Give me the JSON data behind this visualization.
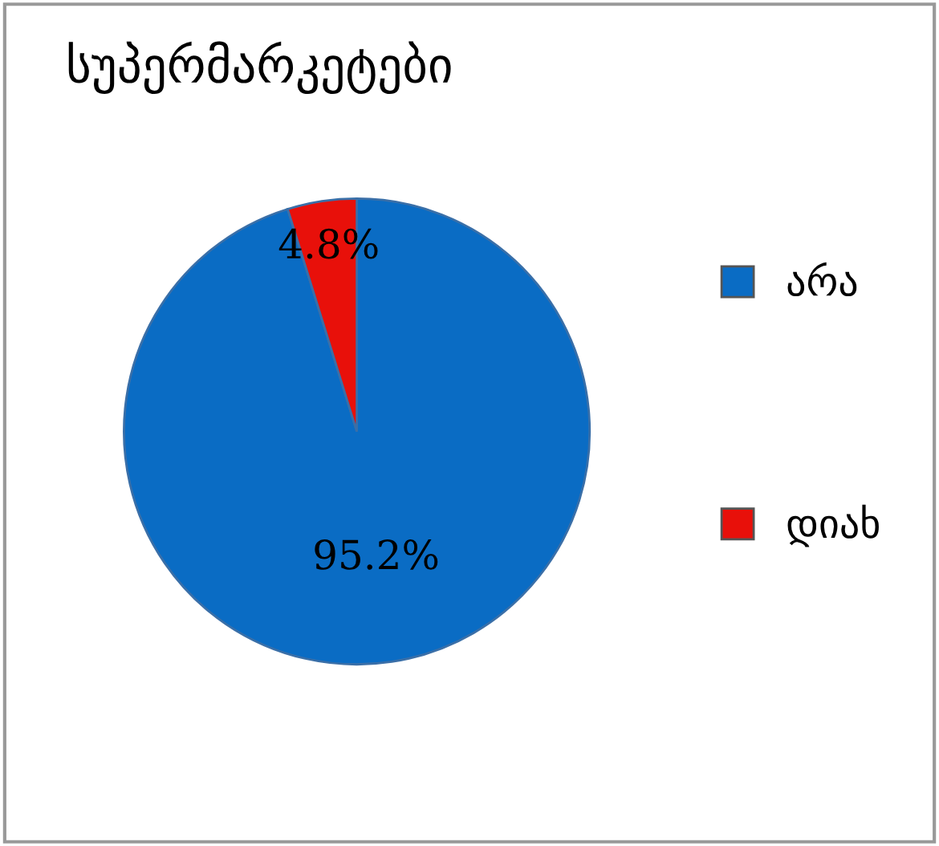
{
  "chart_data": {
    "type": "pie",
    "title": "სუპერმარკეტები",
    "categories": [
      "არა",
      "დიახ"
    ],
    "values": [
      95.2,
      4.8
    ],
    "colors": [
      "#0a6cc4",
      "#e8100a"
    ],
    "value_labels": [
      "95.2%",
      "4.8%"
    ],
    "legend": "right"
  }
}
